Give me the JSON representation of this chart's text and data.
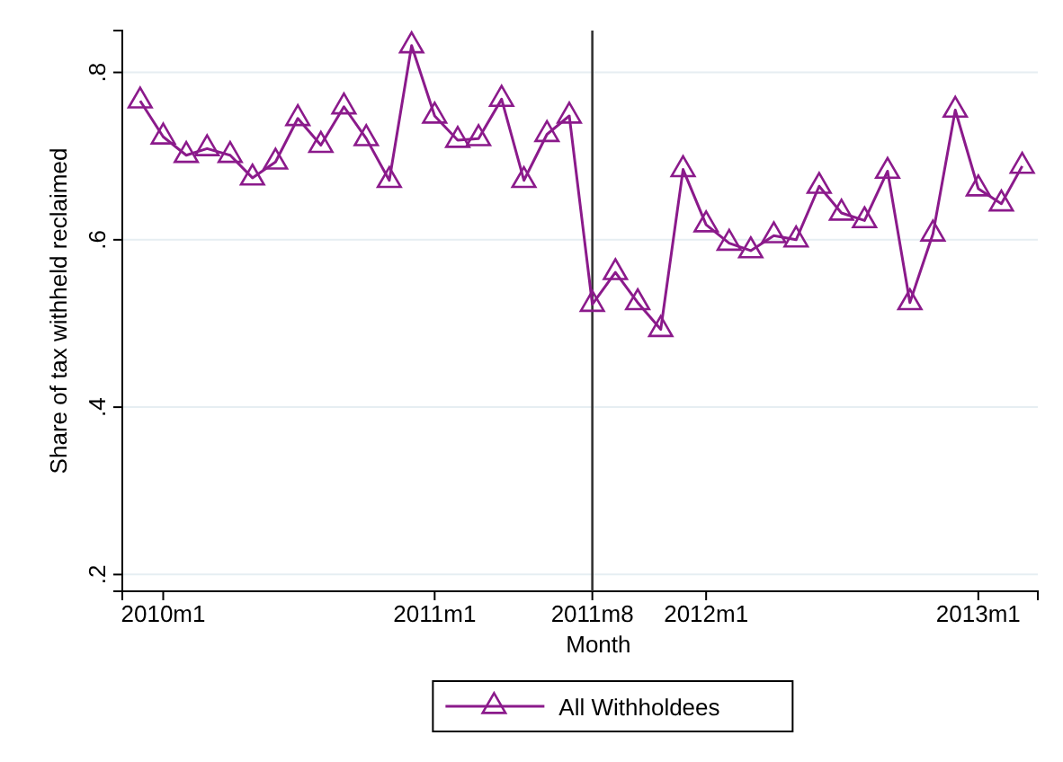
{
  "chart_data": {
    "type": "line",
    "xlabel": "Month",
    "ylabel": "Share of tax withheld reclaimed",
    "x": [
      "2009-12",
      "2010-01",
      "2010-02",
      "2010-03",
      "2010-04",
      "2010-05",
      "2010-06",
      "2010-07",
      "2010-08",
      "2010-09",
      "2010-10",
      "2010-11",
      "2010-12",
      "2011-01",
      "2011-02",
      "2011-03",
      "2011-04",
      "2011-05",
      "2011-06",
      "2011-07",
      "2011-08",
      "2011-09",
      "2011-10",
      "2011-11",
      "2011-12",
      "2012-01",
      "2012-02",
      "2012-03",
      "2012-04",
      "2012-05",
      "2012-06",
      "2012-07",
      "2012-08",
      "2012-09",
      "2012-10",
      "2012-11",
      "2012-12",
      "2013-01",
      "2013-02",
      "2013-03"
    ],
    "series": [
      {
        "name": "All Withholdees",
        "color": "#8b1a8b",
        "values": [
          0.766,
          0.723,
          0.701,
          0.709,
          0.701,
          0.674,
          0.693,
          0.745,
          0.713,
          0.759,
          0.721,
          0.671,
          0.832,
          0.748,
          0.719,
          0.721,
          0.768,
          0.671,
          0.726,
          0.748,
          0.523,
          0.561,
          0.525,
          0.493,
          0.684,
          0.618,
          0.596,
          0.587,
          0.605,
          0.6,
          0.664,
          0.632,
          0.623,
          0.682,
          0.525,
          0.607,
          0.755,
          0.661,
          0.643,
          0.688
        ]
      }
    ],
    "xlim": [
      "2009-11-07",
      "2013-03-22"
    ],
    "ylim": [
      0.18,
      0.85
    ],
    "xticks": [
      {
        "value": "2010-01",
        "label": "2010m1"
      },
      {
        "value": "2011-01",
        "label": "2011m1"
      },
      {
        "value": "2011-08",
        "label": "2011m8"
      },
      {
        "value": "2012-01",
        "label": "2012m1"
      },
      {
        "value": "2013-01",
        "label": "2013m1"
      }
    ],
    "yticks": [
      {
        "value": 0.2,
        "label": ".2"
      },
      {
        "value": 0.4,
        "label": ".4"
      },
      {
        "value": 0.6,
        "label": ".6"
      },
      {
        "value": 0.8,
        "label": ".8"
      }
    ],
    "ref_lines": [
      {
        "axis": "x",
        "value": "2011-08",
        "color": "#333333"
      }
    ],
    "grid": "y",
    "legend": "bottom",
    "marker": "triangle",
    "line_style": "solid"
  }
}
